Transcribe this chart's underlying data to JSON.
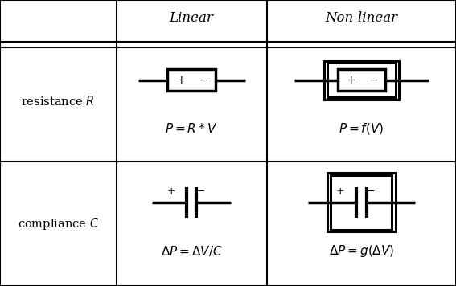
{
  "bg_color": "#ffffff",
  "line_color": "#000000",
  "col_labels": [
    "Linear",
    "Non-linear"
  ],
  "row_labels": [
    "resistance $R$",
    "compliance $C$"
  ],
  "formulas": {
    "res_linear": "$P=  R*V$",
    "res_nonlinear": "$P= f(V)$",
    "comp_linear": "$\\Delta P=  \\Delta V / C$",
    "comp_nonlinear": "$\\Delta P=  g(\\Delta V)$"
  },
  "col0": 0.0,
  "col1": 0.255,
  "col2": 0.585,
  "col3": 1.0,
  "row0": 1.0,
  "row1": 0.855,
  "row2": 0.435,
  "row3": 0.0,
  "lw_grid": 1.5,
  "lw_sym": 2.5,
  "lw_outer": 2.2,
  "lw_wire": 2.5
}
